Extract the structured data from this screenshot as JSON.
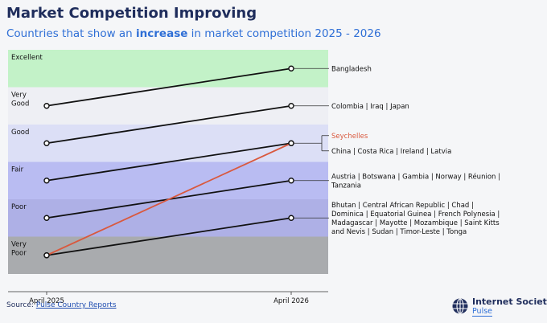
{
  "header": {
    "title": "Market Competition Improving",
    "subtitle_pre": "Countries that show an ",
    "subtitle_bold": "increase",
    "subtitle_post": " in market competition 2025 - 2026"
  },
  "source": {
    "label": "Source: ",
    "link": "Pulse Country Reports"
  },
  "logo": {
    "name": "Internet Society",
    "product": "Pulse"
  },
  "chart_data": {
    "type": "line",
    "x": [
      "April 2025",
      "April 2026"
    ],
    "levels": [
      {
        "value": 1,
        "label": "Very\nPoor",
        "color": "#a9abae"
      },
      {
        "value": 2,
        "label": "Poor",
        "color": "#aeb0e6"
      },
      {
        "value": 3,
        "label": "Fair",
        "color": "#b9bcf2"
      },
      {
        "value": 4,
        "label": "Good",
        "color": "#dcdff6"
      },
      {
        "value": 5,
        "label": "Very\nGood",
        "color": "#eeeff4"
      },
      {
        "value": 6,
        "label": "Excellent",
        "color": "#c3f2c8"
      }
    ],
    "series": [
      {
        "name": "Bangladesh",
        "values": [
          5,
          6
        ],
        "color": "#111111",
        "labelColor": "#111111",
        "labelLines": [
          "Bangladesh"
        ]
      },
      {
        "name": "Colombia | Iraq | Japan",
        "values": [
          4,
          5
        ],
        "color": "#111111",
        "labelColor": "#111111",
        "labelLines": [
          "Colombia | Iraq | Japan"
        ]
      },
      {
        "name": "Seychelles",
        "values": [
          1,
          4
        ],
        "color": "#d9593e",
        "labelColor": "#d9593e",
        "labelLines": [
          "Seychelles"
        ]
      },
      {
        "name": "China | Costa Rica | Ireland | Latvia",
        "values": [
          3,
          4
        ],
        "color": "#111111",
        "labelColor": "#111111",
        "labelLines": [
          "China | Costa Rica | Ireland | Latvia"
        ]
      },
      {
        "name": "Austria | Botswana | Gambia | Norway | Réunion | Tanzania",
        "values": [
          2,
          3
        ],
        "color": "#111111",
        "labelColor": "#111111",
        "labelLines": [
          "Austria | Botswana | Gambia | Norway | Réunion |",
          "Tanzania"
        ]
      },
      {
        "name": "Bhutan | Central African Republic | Chad | Dominica | Equatorial Guinea | French Polynesia | Madagascar | Mayotte | Mozambique | Saint Kitts and Nevis | Sudan | Timor-Leste | Tonga",
        "values": [
          1,
          2
        ],
        "color": "#111111",
        "labelColor": "#111111",
        "labelLines": [
          "Bhutan | Central African Republic | Chad |",
          "Dominica | Equatorial Guinea | French Polynesia |",
          "Madagascar | Mayotte | Mozambique | Saint Kitts",
          "and Nevis | Sudan | Timor-Leste | Tonga"
        ]
      }
    ]
  }
}
